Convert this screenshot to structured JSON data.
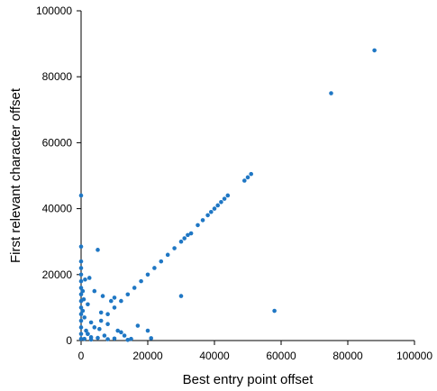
{
  "chart_data": {
    "type": "scatter",
    "title": "",
    "xlabel": "Best entry point offset",
    "ylabel": "First relevant character offset",
    "xlim": [
      0,
      100000
    ],
    "ylim": [
      0,
      100000
    ],
    "xticks": [
      "0",
      "20000",
      "40000",
      "60000",
      "80000",
      "100000"
    ],
    "yticks": [
      "0",
      "20000",
      "40000",
      "60000",
      "80000",
      "100000"
    ],
    "grid": false,
    "legend": "none",
    "point_color": "#1f77c4",
    "series": [
      {
        "points": [
          [
            0,
            44000
          ],
          [
            0,
            28500
          ],
          [
            0,
            24000
          ],
          [
            0,
            22000
          ],
          [
            0,
            20000
          ],
          [
            0,
            18000
          ],
          [
            0,
            16000
          ],
          [
            0,
            14000
          ],
          [
            0,
            12000
          ],
          [
            0,
            10000
          ],
          [
            0,
            8000
          ],
          [
            0,
            6000
          ],
          [
            0,
            4000
          ],
          [
            0,
            2000
          ],
          [
            0,
            500
          ],
          [
            500,
            15000
          ],
          [
            500,
            9000
          ],
          [
            800,
            12500
          ],
          [
            1000,
            7000
          ],
          [
            1200,
            18500
          ],
          [
            1500,
            3000
          ],
          [
            2000,
            11000
          ],
          [
            2000,
            2000
          ],
          [
            2500,
            19000
          ],
          [
            3000,
            5500
          ],
          [
            3000,
            1000
          ],
          [
            4000,
            15000
          ],
          [
            5000,
            27500
          ],
          [
            5500,
            3500
          ],
          [
            6000,
            8500
          ],
          [
            6500,
            13500
          ],
          [
            7000,
            1500
          ],
          [
            8000,
            5000
          ],
          [
            9000,
            12000
          ],
          [
            10000,
            13000
          ],
          [
            11000,
            3000
          ],
          [
            12000,
            2500
          ],
          [
            13000,
            1500
          ],
          [
            15000,
            500
          ],
          [
            17000,
            4500
          ],
          [
            20000,
            3000
          ],
          [
            21000,
            700
          ],
          [
            30000,
            13500
          ],
          [
            58000,
            9000
          ],
          [
            1000,
            500
          ],
          [
            3000,
            300
          ],
          [
            5000,
            800
          ],
          [
            8000,
            400
          ],
          [
            10000,
            600
          ],
          [
            14000,
            200
          ],
          [
            2000,
            2000
          ],
          [
            4000,
            4000
          ],
          [
            6000,
            6000
          ],
          [
            8000,
            8000
          ],
          [
            10000,
            10000
          ],
          [
            12000,
            12000
          ],
          [
            14000,
            14000
          ],
          [
            16000,
            16000
          ],
          [
            18000,
            18000
          ],
          [
            20000,
            20000
          ],
          [
            22000,
            22000
          ],
          [
            24000,
            24000
          ],
          [
            26000,
            26000
          ],
          [
            28000,
            28000
          ],
          [
            30000,
            30000
          ],
          [
            31000,
            31000
          ],
          [
            32000,
            32000
          ],
          [
            33000,
            32500
          ],
          [
            35000,
            35000
          ],
          [
            36500,
            36500
          ],
          [
            38000,
            38000
          ],
          [
            39000,
            39000
          ],
          [
            40000,
            40000
          ],
          [
            41000,
            41000
          ],
          [
            42000,
            42000
          ],
          [
            43000,
            43000
          ],
          [
            44000,
            44000
          ],
          [
            49000,
            48500
          ],
          [
            50000,
            49500
          ],
          [
            51000,
            50500
          ],
          [
            75000,
            75000
          ],
          [
            88000,
            88000
          ]
        ]
      }
    ]
  }
}
